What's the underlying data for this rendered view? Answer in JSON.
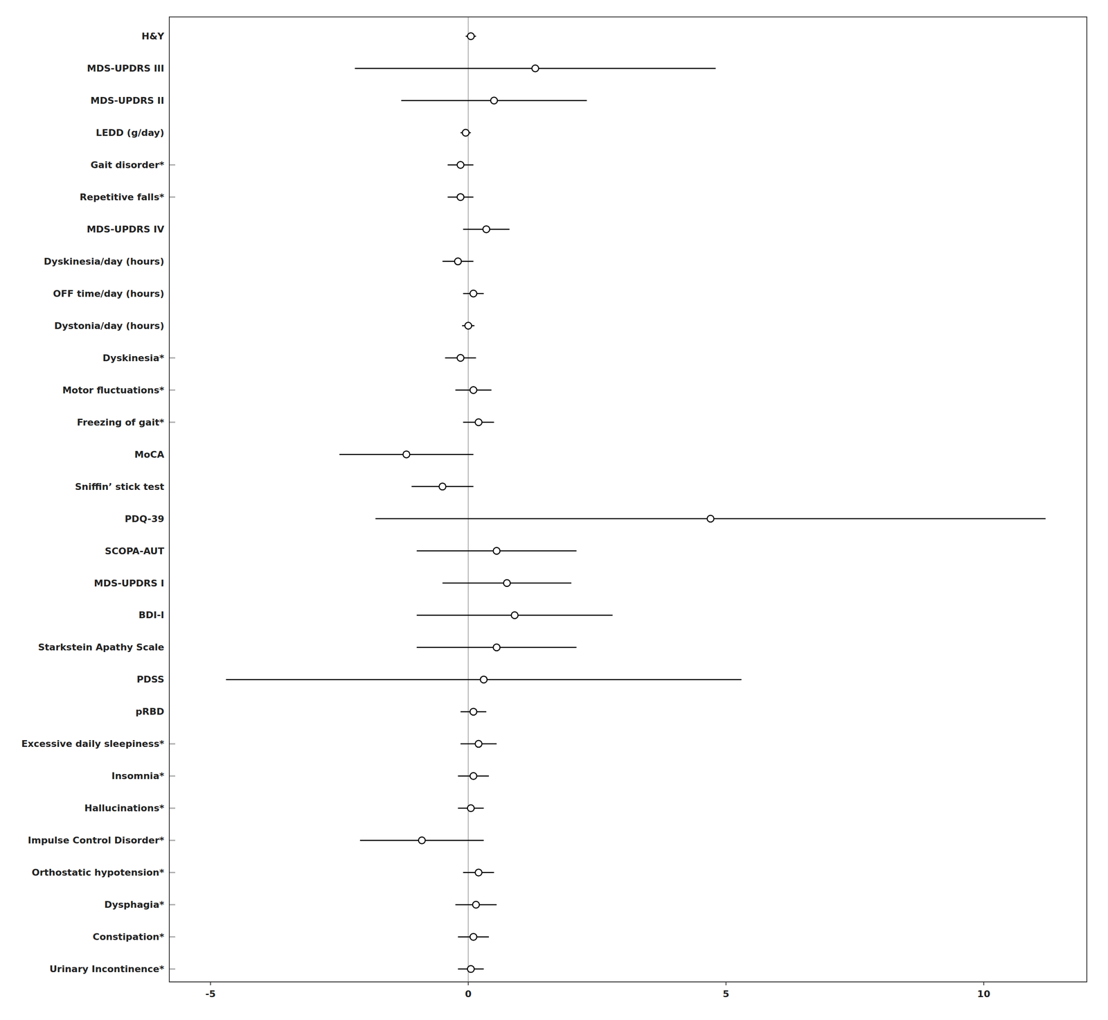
{
  "chart_data": {
    "type": "forest",
    "categories": [
      "H&Y",
      "MDS-UPDRS III",
      "MDS-UPDRS II",
      "LEDD (g/day)",
      "Gait disorder*",
      "Repetitive falls*",
      "MDS-UPDRS IV",
      "Dyskinesia/day (hours)",
      "OFF time/day (hours)",
      "Dystonia/day (hours)",
      "Dyskinesia*",
      "Motor fluctuations*",
      "Freezing of gait*",
      "MoCA",
      "Sniffin’ stick test",
      "PDQ-39",
      "SCOPA-AUT",
      "MDS-UPDRS I",
      "BDI-I",
      "Starkstein Apathy Scale",
      "PDSS",
      "pRBD",
      "Excessive daily sleepiness*",
      "Insomnia*",
      "Hallucinations*",
      "Impulse Control Disorder*",
      "Orthostatic hypotension*",
      "Dysphagia*",
      "Constipation*",
      "Urinary Incontinence*"
    ],
    "values": [
      0.05,
      1.3,
      0.5,
      -0.05,
      -0.15,
      -0.15,
      0.35,
      -0.2,
      0.1,
      0.0,
      -0.15,
      0.1,
      0.2,
      -1.2,
      -0.5,
      4.7,
      0.55,
      0.75,
      0.9,
      0.55,
      0.3,
      0.1,
      0.2,
      0.1,
      0.05,
      -0.9,
      0.2,
      0.15,
      0.1,
      0.05
    ],
    "ci_lower": [
      -0.05,
      -2.2,
      -1.3,
      -0.15,
      -0.4,
      -0.4,
      -0.1,
      -0.5,
      -0.1,
      -0.12,
      -0.45,
      -0.25,
      -0.1,
      -2.5,
      -1.1,
      -1.8,
      -1.0,
      -0.5,
      -1.0,
      -1.0,
      -4.7,
      -0.15,
      -0.15,
      -0.2,
      -0.2,
      -2.1,
      -0.1,
      -0.25,
      -0.2,
      -0.2
    ],
    "ci_upper": [
      0.15,
      4.8,
      2.3,
      0.05,
      0.1,
      0.1,
      0.8,
      0.1,
      0.3,
      0.12,
      0.15,
      0.45,
      0.5,
      0.1,
      0.1,
      11.2,
      2.1,
      2.0,
      2.8,
      2.1,
      5.3,
      0.35,
      0.55,
      0.4,
      0.3,
      0.3,
      0.5,
      0.55,
      0.4,
      0.3
    ],
    "binary": [
      false,
      false,
      false,
      false,
      true,
      true,
      false,
      false,
      false,
      false,
      true,
      true,
      true,
      false,
      false,
      false,
      false,
      false,
      false,
      false,
      false,
      false,
      true,
      true,
      true,
      true,
      true,
      true,
      true,
      true
    ],
    "ref_line": 0,
    "color": "black",
    "xlim": [
      -5.8,
      12.0
    ],
    "xticks": [
      -5,
      0,
      5,
      10
    ],
    "grid": false
  }
}
